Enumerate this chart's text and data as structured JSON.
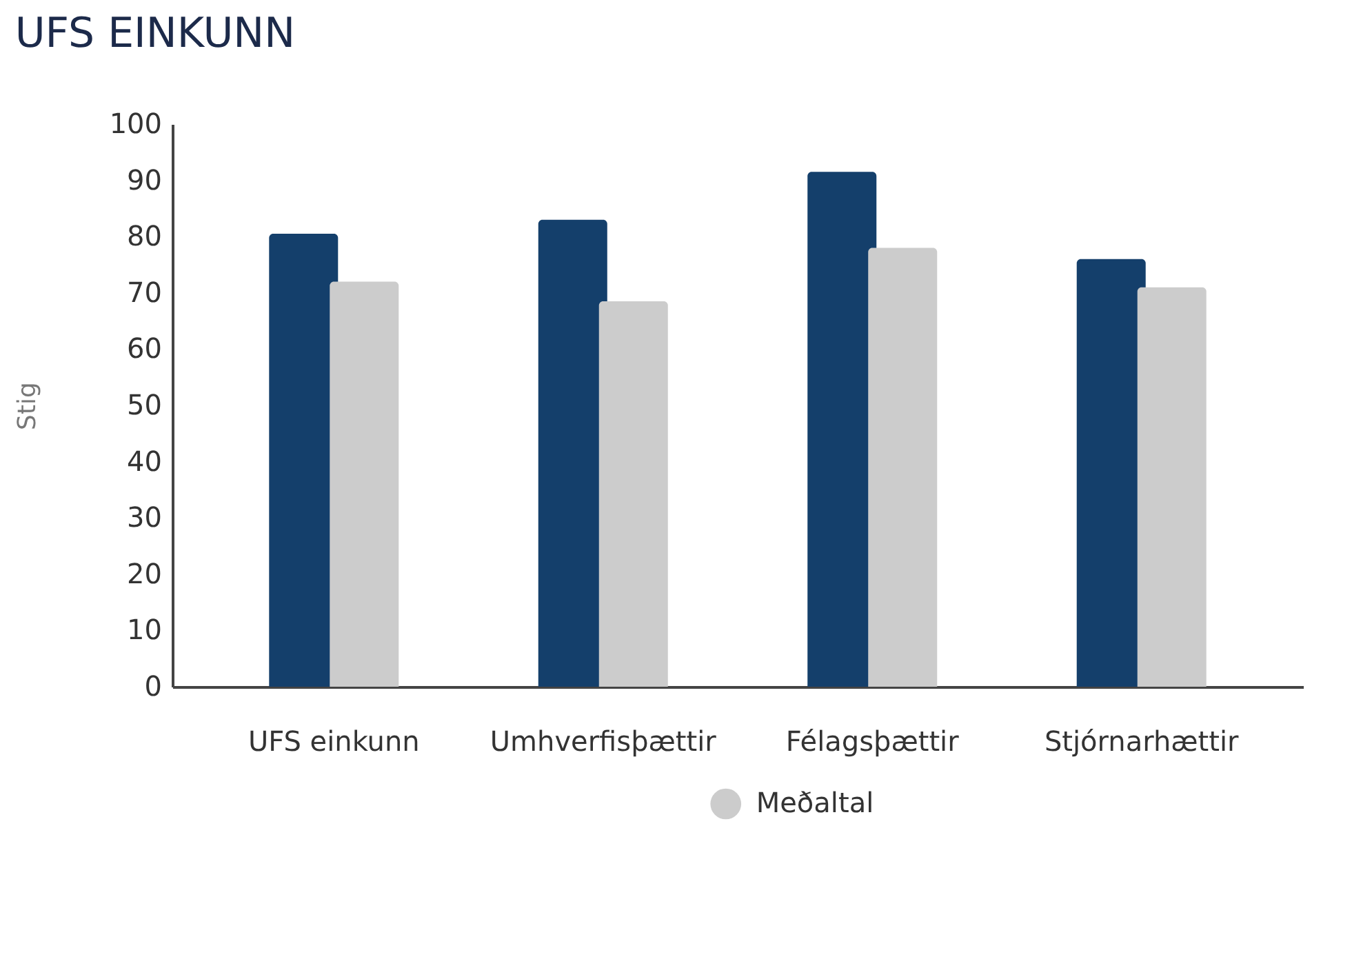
{
  "chart_data": {
    "type": "bar",
    "title": "UFS EINKUNN",
    "ylabel": "Stig",
    "categories": [
      "UFS einkunn",
      "Umhverfisþættir",
      "Félagsþættir",
      "Stjórnarhættir"
    ],
    "series": [
      {
        "color": "#143f6b",
        "values": [
          80.5,
          83,
          91.5,
          76
        ]
      },
      {
        "name": "Meðaltal",
        "color": "#cccccc",
        "values": [
          72,
          68.5,
          78,
          71
        ]
      }
    ],
    "ylim": [
      0,
      100
    ],
    "yticks": [
      0,
      10,
      20,
      30,
      40,
      50,
      60,
      70,
      80,
      90,
      100
    ],
    "grid": false,
    "legend": "bottom"
  }
}
